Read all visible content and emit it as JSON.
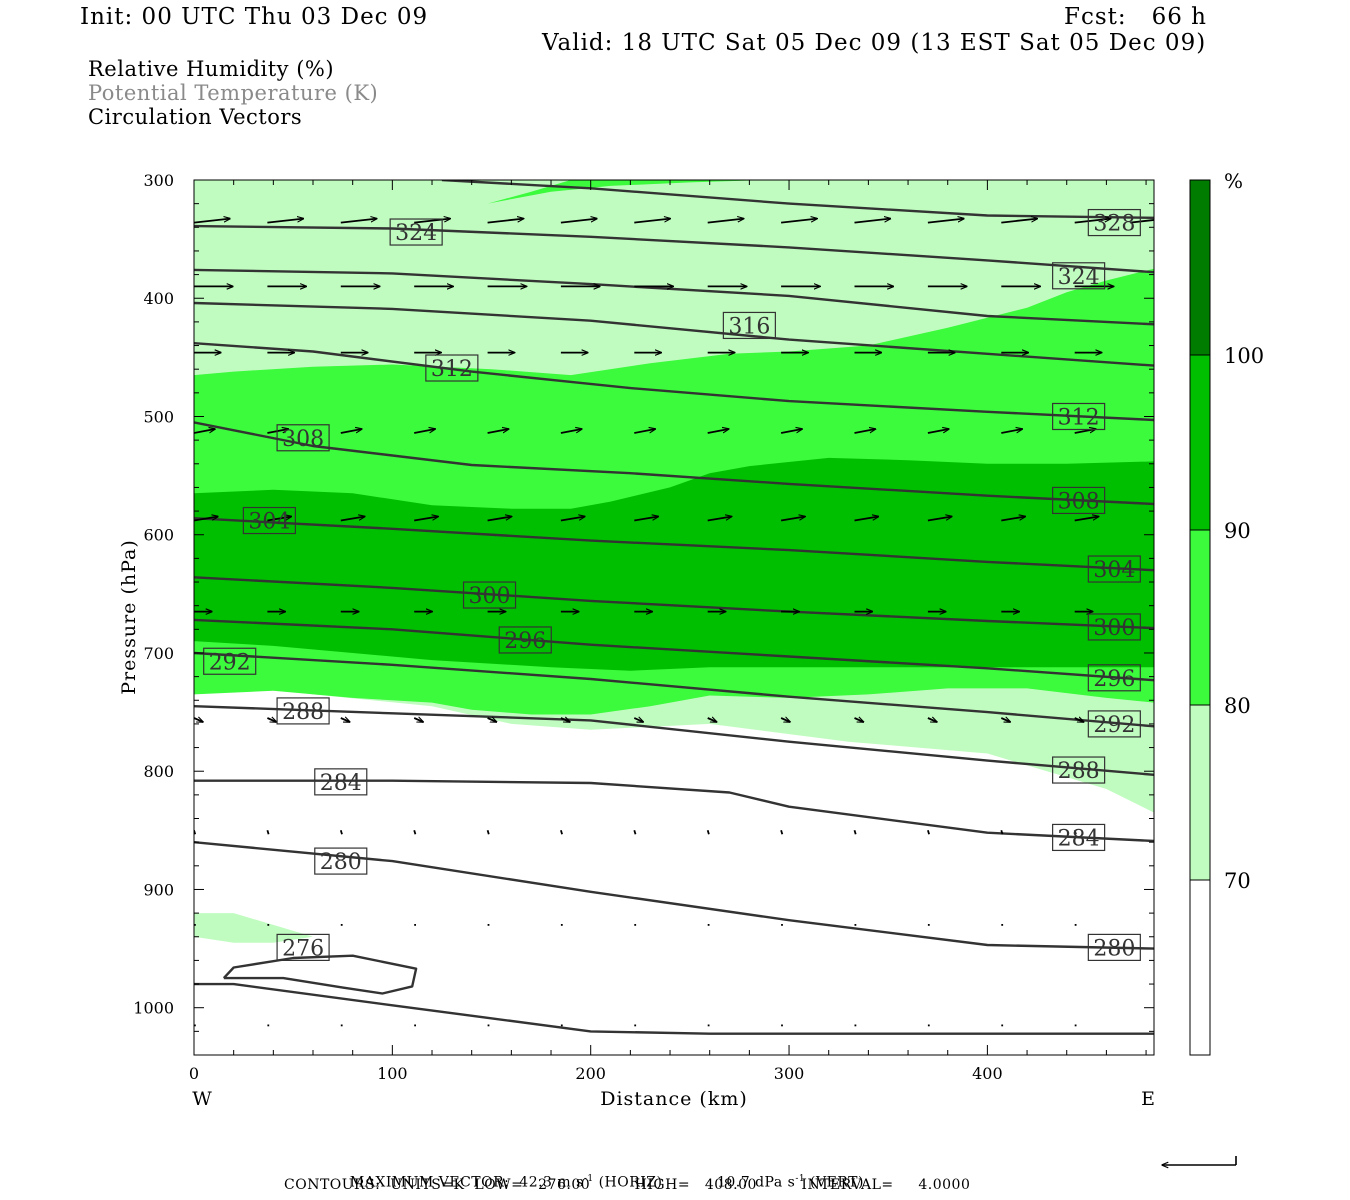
{
  "header": {
    "init": "Init: 00 UTC Thu 03 Dec 09",
    "fcst": "Fcst:   66 h",
    "valid": "Valid: 18 UTC Sat 05 Dec 09 (13 EST Sat 05 Dec 09)"
  },
  "legend": {
    "rh": "Relative Humidity (%)",
    "theta": "Potential Temperature (K)",
    "vectors": "Circulation Vectors"
  },
  "colors": {
    "rh_70_80": "#c0fcc0",
    "rh_80_90": "#3cfa3c",
    "rh_90_100": "#00bf00",
    "rh_100": "#007d00",
    "contour": "#333333"
  },
  "chart_data": {
    "type": "contour",
    "xlabel": "Distance (km)",
    "ylabel": "Pressure (hPa)",
    "xlim": [
      0,
      484
    ],
    "ylim": [
      1040,
      300
    ],
    "x_ticks": [
      "0",
      "100",
      "200",
      "300",
      "400"
    ],
    "x_tick_values": [
      0,
      100,
      200,
      300,
      400
    ],
    "y_ticks": [
      "300",
      "400",
      "500",
      "600",
      "700",
      "800",
      "900",
      "1000"
    ],
    "y_tick_values": [
      300,
      400,
      500,
      600,
      700,
      800,
      900,
      1000
    ],
    "x_end_labels": {
      "left": "W",
      "right": "E"
    },
    "colorbar": {
      "unit": "%",
      "labels": [
        "100",
        "90",
        "80",
        "70"
      ],
      "levels": [
        100,
        90,
        80,
        70
      ]
    },
    "rh_fill": [
      {
        "level": 70,
        "color": "#c0fcc0",
        "points": [
          [
            0,
            300
          ],
          [
            484,
            300
          ],
          [
            484,
            835
          ],
          [
            460,
            815
          ],
          [
            400,
            785
          ],
          [
            330,
            775
          ],
          [
            260,
            760
          ],
          [
            200,
            765
          ],
          [
            160,
            760
          ],
          [
            120,
            745
          ],
          [
            60,
            735
          ],
          [
            20,
            720
          ],
          [
            0,
            705
          ]
        ]
      },
      {
        "level": 70,
        "color": "#c0fcc0",
        "points": [
          [
            0,
            920
          ],
          [
            20,
            920
          ],
          [
            40,
            930
          ],
          [
            60,
            940
          ],
          [
            40,
            945
          ],
          [
            20,
            945
          ],
          [
            0,
            940
          ]
        ]
      },
      {
        "level": 80,
        "color": "#3cfa3c",
        "points": [
          [
            0,
            465
          ],
          [
            20,
            462
          ],
          [
            60,
            458
          ],
          [
            100,
            456
          ],
          [
            150,
            460
          ],
          [
            190,
            465
          ],
          [
            230,
            455
          ],
          [
            270,
            447
          ],
          [
            300,
            445
          ],
          [
            340,
            440
          ],
          [
            380,
            425
          ],
          [
            420,
            408
          ],
          [
            440,
            395
          ],
          [
            460,
            385
          ],
          [
            484,
            375
          ],
          [
            484,
            742
          ],
          [
            460,
            738
          ],
          [
            420,
            730
          ],
          [
            380,
            730
          ],
          [
            340,
            735
          ],
          [
            300,
            738
          ],
          [
            260,
            736
          ],
          [
            230,
            745
          ],
          [
            200,
            752
          ],
          [
            170,
            752
          ],
          [
            140,
            748
          ],
          [
            120,
            742
          ],
          [
            80,
            738
          ],
          [
            40,
            732
          ],
          [
            0,
            735
          ]
        ]
      },
      {
        "level": 80,
        "color": "#3cfa3c",
        "points": [
          [
            148,
            320
          ],
          [
            180,
            310
          ],
          [
            210,
            305
          ],
          [
            250,
            302
          ],
          [
            288,
            300
          ],
          [
            250,
            300
          ],
          [
            190,
            300
          ],
          [
            170,
            310
          ],
          [
            148,
            320
          ]
        ]
      },
      {
        "level": 90,
        "color": "#00bf00",
        "points": [
          [
            0,
            565
          ],
          [
            40,
            562
          ],
          [
            80,
            565
          ],
          [
            120,
            575
          ],
          [
            160,
            578
          ],
          [
            190,
            578
          ],
          [
            210,
            572
          ],
          [
            240,
            560
          ],
          [
            260,
            548
          ],
          [
            280,
            542
          ],
          [
            320,
            535
          ],
          [
            360,
            537
          ],
          [
            400,
            540
          ],
          [
            440,
            540
          ],
          [
            484,
            538
          ],
          [
            484,
            712
          ],
          [
            440,
            712
          ],
          [
            400,
            712
          ],
          [
            360,
            712
          ],
          [
            320,
            712
          ],
          [
            260,
            712
          ],
          [
            220,
            715
          ],
          [
            180,
            712
          ],
          [
            120,
            706
          ],
          [
            80,
            700
          ],
          [
            40,
            694
          ],
          [
            0,
            690
          ]
        ]
      }
    ],
    "theta_contours": [
      {
        "theta": 328,
        "points": [
          [
            125,
            300
          ],
          [
            200,
            307
          ],
          [
            300,
            320
          ],
          [
            400,
            330
          ],
          [
            484,
            332
          ]
        ]
      },
      {
        "theta": 324,
        "points": [
          [
            0,
            339
          ],
          [
            100,
            341
          ],
          [
            200,
            348
          ],
          [
            300,
            357
          ],
          [
            400,
            368
          ],
          [
            484,
            378
          ]
        ]
      },
      {
        "theta": 320,
        "points": [
          [
            0,
            376
          ],
          [
            100,
            379
          ],
          [
            200,
            388
          ],
          [
            300,
            398
          ],
          [
            400,
            415
          ],
          [
            484,
            422
          ]
        ]
      },
      {
        "theta": 316,
        "points": [
          [
            0,
            404
          ],
          [
            100,
            409
          ],
          [
            200,
            419
          ],
          [
            300,
            435
          ],
          [
            400,
            447
          ],
          [
            484,
            457
          ]
        ]
      },
      {
        "theta": 312,
        "points": [
          [
            0,
            438
          ],
          [
            60,
            445
          ],
          [
            140,
            462
          ],
          [
            220,
            476
          ],
          [
            300,
            487
          ],
          [
            400,
            496
          ],
          [
            484,
            503
          ]
        ]
      },
      {
        "theta": 308,
        "points": [
          [
            0,
            505
          ],
          [
            60,
            525
          ],
          [
            140,
            541
          ],
          [
            220,
            548
          ],
          [
            300,
            557
          ],
          [
            400,
            567
          ],
          [
            484,
            574
          ]
        ]
      },
      {
        "theta": 304,
        "points": [
          [
            0,
            586
          ],
          [
            100,
            595
          ],
          [
            200,
            605
          ],
          [
            300,
            613
          ],
          [
            400,
            623
          ],
          [
            484,
            630
          ]
        ]
      },
      {
        "theta": 300,
        "points": [
          [
            0,
            636
          ],
          [
            100,
            645
          ],
          [
            200,
            656
          ],
          [
            300,
            665
          ],
          [
            400,
            673
          ],
          [
            484,
            679
          ]
        ]
      },
      {
        "theta": 296,
        "points": [
          [
            0,
            672
          ],
          [
            100,
            680
          ],
          [
            200,
            693
          ],
          [
            300,
            703
          ],
          [
            400,
            713
          ],
          [
            484,
            723
          ]
        ]
      },
      {
        "theta": 292,
        "points": [
          [
            0,
            700
          ],
          [
            100,
            710
          ],
          [
            200,
            722
          ],
          [
            300,
            737
          ],
          [
            400,
            750
          ],
          [
            484,
            762
          ]
        ]
      },
      {
        "theta": 288,
        "points": [
          [
            0,
            745
          ],
          [
            100,
            751
          ],
          [
            200,
            757
          ],
          [
            300,
            775
          ],
          [
            400,
            791
          ],
          [
            484,
            803
          ]
        ]
      },
      {
        "theta": 284,
        "points": [
          [
            0,
            808
          ],
          [
            100,
            808
          ],
          [
            200,
            810
          ],
          [
            270,
            818
          ],
          [
            300,
            830
          ],
          [
            400,
            852
          ],
          [
            484,
            859
          ]
        ]
      },
      {
        "theta": 280,
        "points": [
          [
            0,
            860
          ],
          [
            100,
            876
          ],
          [
            200,
            902
          ],
          [
            300,
            926
          ],
          [
            400,
            947
          ],
          [
            484,
            950
          ]
        ]
      },
      {
        "theta": 276,
        "points": [
          [
            15,
            975
          ],
          [
            45,
            975
          ],
          [
            75,
            983
          ],
          [
            95,
            988
          ],
          [
            110,
            982
          ],
          [
            112,
            967
          ],
          [
            80,
            956
          ],
          [
            50,
            958
          ],
          [
            20,
            966
          ],
          [
            15,
            975
          ]
        ]
      },
      {
        "theta": 276,
        "points": [
          [
            0,
            980
          ],
          [
            20,
            980
          ],
          [
            100,
            998
          ],
          [
            200,
            1020
          ],
          [
            260,
            1022
          ],
          [
            484,
            1022
          ]
        ]
      }
    ],
    "theta_labels": [
      {
        "text": "324",
        "x": 112,
        "p": 344
      },
      {
        "text": "328",
        "x": 464,
        "p": 336
      },
      {
        "text": "324",
        "x": 446,
        "p": 381
      },
      {
        "text": "316",
        "x": 280,
        "p": 423
      },
      {
        "text": "312",
        "x": 130,
        "p": 459
      },
      {
        "text": "312",
        "x": 446,
        "p": 500
      },
      {
        "text": "308",
        "x": 55,
        "p": 518
      },
      {
        "text": "308",
        "x": 446,
        "p": 571
      },
      {
        "text": "304",
        "x": 38,
        "p": 588
      },
      {
        "text": "304",
        "x": 464,
        "p": 629
      },
      {
        "text": "300",
        "x": 149,
        "p": 651
      },
      {
        "text": "300",
        "x": 464,
        "p": 678
      },
      {
        "text": "296",
        "x": 167,
        "p": 689
      },
      {
        "text": "296",
        "x": 464,
        "p": 721
      },
      {
        "text": "292",
        "x": 18,
        "p": 707
      },
      {
        "text": "292",
        "x": 464,
        "p": 760
      },
      {
        "text": "288",
        "x": 55,
        "p": 749
      },
      {
        "text": "288",
        "x": 446,
        "p": 799
      },
      {
        "text": "284",
        "x": 74,
        "p": 809
      },
      {
        "text": "284",
        "x": 446,
        "p": 856
      },
      {
        "text": "280",
        "x": 74,
        "p": 876
      },
      {
        "text": "280",
        "x": 464,
        "p": 949
      },
      {
        "text": "276",
        "x": 55,
        "p": 949
      }
    ],
    "vector_rows": [
      {
        "p": 336,
        "u": 12,
        "w": -1,
        "xs": [
          0,
          37,
          74,
          111,
          148,
          185,
          222,
          259,
          296,
          333,
          370,
          407,
          444,
          472
        ]
      },
      {
        "p": 390,
        "u": 13,
        "w": 0,
        "xs": [
          0,
          37,
          74,
          111,
          148,
          185,
          222,
          259,
          296,
          333,
          370,
          407,
          444
        ]
      },
      {
        "p": 446,
        "u": 9,
        "w": 0,
        "xs": [
          0,
          37,
          74,
          111,
          148,
          185,
          222,
          259,
          296,
          333,
          370,
          407,
          444
        ]
      },
      {
        "p": 514,
        "u": 7,
        "w": -1,
        "xs": [
          0,
          37,
          74,
          111,
          148,
          185,
          222,
          259,
          296,
          333,
          370,
          407,
          444
        ]
      },
      {
        "p": 588,
        "u": 8,
        "w": -1,
        "xs": [
          0,
          37,
          74,
          111,
          148,
          185,
          222,
          259,
          296,
          333,
          370,
          407,
          444
        ]
      },
      {
        "p": 665,
        "u": 6,
        "w": 0,
        "xs": [
          0,
          37,
          74,
          111,
          148,
          185,
          222,
          259,
          296,
          333,
          370,
          407,
          444
        ]
      },
      {
        "p": 755,
        "u": 3,
        "w": 1,
        "xs": [
          0,
          37,
          74,
          111,
          148,
          185,
          222,
          259,
          296,
          333,
          370,
          407,
          444
        ]
      },
      {
        "p": 850,
        "u": 0.4,
        "w": 1,
        "xs": [
          0,
          37,
          74,
          111,
          148,
          185,
          222,
          259,
          296,
          333,
          370,
          407,
          444
        ]
      },
      {
        "p": 930,
        "u": 0.6,
        "w": 0,
        "xs": [
          0,
          37,
          74,
          111,
          148,
          185,
          222,
          259,
          296,
          333,
          370,
          407,
          444
        ]
      },
      {
        "p": 1015,
        "u": 0.6,
        "w": 0,
        "xs": [
          0,
          37,
          74,
          111,
          148,
          185,
          222,
          259,
          296,
          333,
          370,
          407,
          444
        ]
      }
    ]
  },
  "footer": {
    "maximum_vector_label": "MAXIMUM VECTOR:",
    "horiz_value": "42.3 m s",
    "horiz_exp": "-1",
    "horiz_unit": "(HORIZ)",
    "vert_value": "10.7 dPa s",
    "vert_exp": "-1",
    "vert_unit": "(VERT)",
    "contours": "CONTOURS:  UNITS=K  LOW=   276.00         HIGH=   408.00         INTERVAL=     4.0000"
  }
}
